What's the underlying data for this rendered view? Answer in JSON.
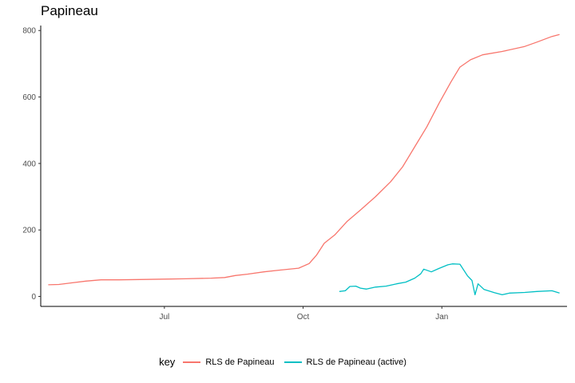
{
  "chart_data": {
    "type": "line",
    "title": "Papineau",
    "xlabel": "",
    "ylabel": "",
    "x_range": [
      "2020-04-10",
      "2021-03-25"
    ],
    "ylim": [
      -30,
      815
    ],
    "x_ticks": [
      {
        "date": "2020-07-01",
        "label": "Jul"
      },
      {
        "date": "2020-10-01",
        "label": "Oct"
      },
      {
        "date": "2021-01-01",
        "label": "Jan"
      }
    ],
    "y_ticks": [
      0,
      200,
      400,
      600,
      800
    ],
    "grid": false,
    "legend": {
      "title": "key",
      "position": "bottom"
    },
    "series": [
      {
        "name": "RLS de Papineau",
        "color": "#F8766D",
        "points": [
          [
            "2020-04-15",
            35
          ],
          [
            "2020-04-22",
            36
          ],
          [
            "2020-05-01",
            41
          ],
          [
            "2020-05-10",
            46
          ],
          [
            "2020-05-20",
            50
          ],
          [
            "2020-06-01",
            50
          ],
          [
            "2020-06-15",
            51
          ],
          [
            "2020-07-01",
            52
          ],
          [
            "2020-07-15",
            53
          ],
          [
            "2020-08-01",
            55
          ],
          [
            "2020-08-10",
            57
          ],
          [
            "2020-08-17",
            63
          ],
          [
            "2020-08-25",
            67
          ],
          [
            "2020-09-05",
            74
          ],
          [
            "2020-09-15",
            79
          ],
          [
            "2020-09-28",
            85
          ],
          [
            "2020-10-05",
            99
          ],
          [
            "2020-10-10",
            125
          ],
          [
            "2020-10-15",
            160
          ],
          [
            "2020-10-22",
            185
          ],
          [
            "2020-10-30",
            225
          ],
          [
            "2020-11-08",
            260
          ],
          [
            "2020-11-18",
            300
          ],
          [
            "2020-11-28",
            345
          ],
          [
            "2020-12-06",
            390
          ],
          [
            "2020-12-14",
            450
          ],
          [
            "2020-12-22",
            510
          ],
          [
            "2020-12-30",
            580
          ],
          [
            "2021-01-07",
            645
          ],
          [
            "2021-01-13",
            690
          ],
          [
            "2021-01-20",
            712
          ],
          [
            "2021-01-28",
            727
          ],
          [
            "2021-02-10",
            737
          ],
          [
            "2021-02-25",
            752
          ],
          [
            "2021-03-05",
            765
          ],
          [
            "2021-03-15",
            782
          ],
          [
            "2021-03-20",
            788
          ]
        ]
      },
      {
        "name": "RLS de Papineau (active)",
        "color": "#00BFC4",
        "points": [
          [
            "2020-10-25",
            15
          ],
          [
            "2020-10-29",
            17
          ],
          [
            "2020-11-01",
            30
          ],
          [
            "2020-11-05",
            31
          ],
          [
            "2020-11-08",
            25
          ],
          [
            "2020-11-12",
            22
          ],
          [
            "2020-11-18",
            28
          ],
          [
            "2020-11-25",
            31
          ],
          [
            "2020-12-02",
            38
          ],
          [
            "2020-12-08",
            43
          ],
          [
            "2020-12-14",
            55
          ],
          [
            "2020-12-18",
            68
          ],
          [
            "2020-12-20",
            82
          ],
          [
            "2020-12-25",
            74
          ],
          [
            "2020-12-30",
            84
          ],
          [
            "2021-01-05",
            95
          ],
          [
            "2021-01-08",
            98
          ],
          [
            "2021-01-13",
            97
          ],
          [
            "2021-01-18",
            62
          ],
          [
            "2021-01-21",
            48
          ],
          [
            "2021-01-23",
            5
          ],
          [
            "2021-01-25",
            38
          ],
          [
            "2021-01-29",
            21
          ],
          [
            "2021-02-05",
            11
          ],
          [
            "2021-02-10",
            5
          ],
          [
            "2021-02-15",
            10
          ],
          [
            "2021-02-25",
            12
          ],
          [
            "2021-03-05",
            15
          ],
          [
            "2021-03-15",
            17
          ],
          [
            "2021-03-20",
            10
          ]
        ]
      }
    ]
  }
}
